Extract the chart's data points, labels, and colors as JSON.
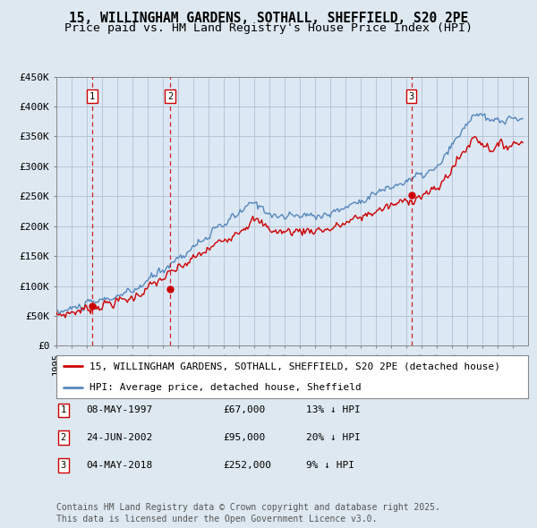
{
  "title": "15, WILLINGHAM GARDENS, SOTHALL, SHEFFIELD, S20 2PE",
  "subtitle": "Price paid vs. HM Land Registry's House Price Index (HPI)",
  "ylim": [
    0,
    450000
  ],
  "yticks": [
    0,
    50000,
    100000,
    150000,
    200000,
    250000,
    300000,
    350000,
    400000,
    450000
  ],
  "ytick_labels": [
    "£0",
    "£50K",
    "£100K",
    "£150K",
    "£200K",
    "£250K",
    "£300K",
    "£350K",
    "£400K",
    "£450K"
  ],
  "xlim_start": 1995.0,
  "xlim_end": 2026.0,
  "sale_dates": [
    1997.356,
    2002.481,
    2018.34
  ],
  "sale_prices": [
    67000,
    95000,
    252000
  ],
  "sale_labels": [
    "1",
    "2",
    "3"
  ],
  "sale_date_strs": [
    "08-MAY-1997",
    "24-JUN-2002",
    "04-MAY-2018"
  ],
  "sale_price_strs": [
    "£67,000",
    "£95,000",
    "£252,000"
  ],
  "sale_hpi_strs": [
    "13% ↓ HPI",
    "20% ↓ HPI",
    "9% ↓ HPI"
  ],
  "line_color_price": "#cc0000",
  "line_color_hpi": "#5588bb",
  "background_color": "#dde8f0",
  "plot_bg_color": "#dde8f5",
  "grid_color": "#b0c0d0",
  "legend_label_price": "15, WILLINGHAM GARDENS, SOTHALL, SHEFFIELD, S20 2PE (detached house)",
  "legend_label_hpi": "HPI: Average price, detached house, Sheffield",
  "footnote": "Contains HM Land Registry data © Crown copyright and database right 2025.\nThis data is licensed under the Open Government Licence v3.0.",
  "title_fontsize": 10.5,
  "subtitle_fontsize": 9.5,
  "tick_fontsize": 8,
  "legend_fontsize": 8,
  "table_fontsize": 8,
  "footnote_fontsize": 7
}
